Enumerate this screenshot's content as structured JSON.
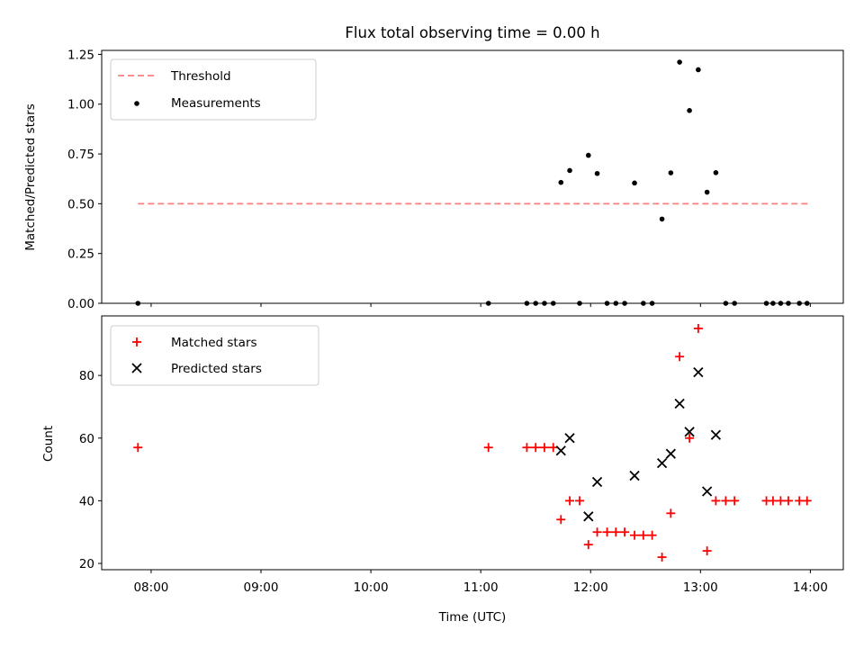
{
  "chart_data": [
    {
      "type": "scatter",
      "title": "Flux total observing time = 0.00 h",
      "xlabel": "",
      "ylabel": "Matched/Predicted stars",
      "xlim": [
        7.55,
        14.3
      ],
      "ylim": [
        0,
        1.27
      ],
      "yticks": [
        0.0,
        0.25,
        0.5,
        0.75,
        1.0,
        1.25
      ],
      "ytick_labels": [
        "0.00",
        "0.25",
        "0.50",
        "0.75",
        "1.00",
        "1.25"
      ],
      "legend_position": "top-left",
      "threshold": {
        "name": "Threshold",
        "value": 0.5,
        "x_range": [
          7.88,
          13.98
        ],
        "color": "#ff7f7f"
      },
      "series": [
        {
          "name": "Measurements",
          "color": "#000000",
          "points": [
            {
              "x": 7.88,
              "y": 0.0
            },
            {
              "x": 11.07,
              "y": 0.0
            },
            {
              "x": 11.42,
              "y": 0.0
            },
            {
              "x": 11.5,
              "y": 0.0
            },
            {
              "x": 11.58,
              "y": 0.0
            },
            {
              "x": 11.66,
              "y": 0.0
            },
            {
              "x": 11.73,
              "y": 0.607
            },
            {
              "x": 11.81,
              "y": 0.667
            },
            {
              "x": 11.9,
              "y": 0.0
            },
            {
              "x": 11.98,
              "y": 0.743
            },
            {
              "x": 12.06,
              "y": 0.652
            },
            {
              "x": 12.15,
              "y": 0.0
            },
            {
              "x": 12.23,
              "y": 0.0
            },
            {
              "x": 12.31,
              "y": 0.0
            },
            {
              "x": 12.4,
              "y": 0.604
            },
            {
              "x": 12.48,
              "y": 0.0
            },
            {
              "x": 12.56,
              "y": 0.0
            },
            {
              "x": 12.65,
              "y": 0.423
            },
            {
              "x": 12.73,
              "y": 0.655
            },
            {
              "x": 12.81,
              "y": 1.211
            },
            {
              "x": 12.9,
              "y": 0.968
            },
            {
              "x": 12.98,
              "y": 1.173
            },
            {
              "x": 13.06,
              "y": 0.558
            },
            {
              "x": 13.14,
              "y": 0.656
            },
            {
              "x": 13.23,
              "y": 0.0
            },
            {
              "x": 13.31,
              "y": 0.0
            },
            {
              "x": 13.6,
              "y": 0.0
            },
            {
              "x": 13.66,
              "y": 0.0
            },
            {
              "x": 13.73,
              "y": 0.0
            },
            {
              "x": 13.8,
              "y": 0.0
            },
            {
              "x": 13.9,
              "y": 0.0
            },
            {
              "x": 13.97,
              "y": 0.0
            }
          ]
        }
      ]
    },
    {
      "type": "scatter",
      "title": "",
      "xlabel": "Time (UTC)",
      "ylabel": "Count",
      "xlim": [
        7.55,
        14.3
      ],
      "ylim": [
        18,
        99
      ],
      "yticks": [
        20,
        40,
        60,
        80
      ],
      "ytick_labels": [
        "20",
        "40",
        "60",
        "80"
      ],
      "xticks": [
        8,
        9,
        10,
        11,
        12,
        13,
        14
      ],
      "xtick_labels": [
        "08:00",
        "09:00",
        "10:00",
        "11:00",
        "12:00",
        "13:00",
        "14:00"
      ],
      "legend_position": "top-left",
      "series": [
        {
          "name": "Matched stars",
          "color": "#ff0000",
          "points": [
            {
              "x": 7.88,
              "y": 57
            },
            {
              "x": 11.07,
              "y": 57
            },
            {
              "x": 11.42,
              "y": 57
            },
            {
              "x": 11.5,
              "y": 57
            },
            {
              "x": 11.58,
              "y": 57
            },
            {
              "x": 11.66,
              "y": 57
            },
            {
              "x": 11.73,
              "y": 34
            },
            {
              "x": 11.81,
              "y": 40
            },
            {
              "x": 11.9,
              "y": 40
            },
            {
              "x": 11.98,
              "y": 26
            },
            {
              "x": 12.06,
              "y": 30
            },
            {
              "x": 12.15,
              "y": 30
            },
            {
              "x": 12.23,
              "y": 30
            },
            {
              "x": 12.31,
              "y": 30
            },
            {
              "x": 12.4,
              "y": 29
            },
            {
              "x": 12.48,
              "y": 29
            },
            {
              "x": 12.56,
              "y": 29
            },
            {
              "x": 12.65,
              "y": 22
            },
            {
              "x": 12.73,
              "y": 36
            },
            {
              "x": 12.81,
              "y": 86
            },
            {
              "x": 12.9,
              "y": 60
            },
            {
              "x": 12.98,
              "y": 95
            },
            {
              "x": 13.06,
              "y": 24
            },
            {
              "x": 13.14,
              "y": 40
            },
            {
              "x": 13.23,
              "y": 40
            },
            {
              "x": 13.31,
              "y": 40
            },
            {
              "x": 13.6,
              "y": 40
            },
            {
              "x": 13.66,
              "y": 40
            },
            {
              "x": 13.73,
              "y": 40
            },
            {
              "x": 13.8,
              "y": 40
            },
            {
              "x": 13.9,
              "y": 40
            },
            {
              "x": 13.97,
              "y": 40
            }
          ]
        },
        {
          "name": "Predicted stars",
          "color": "#000000",
          "points": [
            {
              "x": 11.73,
              "y": 56
            },
            {
              "x": 11.81,
              "y": 60
            },
            {
              "x": 11.98,
              "y": 35
            },
            {
              "x": 12.06,
              "y": 46
            },
            {
              "x": 12.4,
              "y": 48
            },
            {
              "x": 12.65,
              "y": 52
            },
            {
              "x": 12.73,
              "y": 55
            },
            {
              "x": 12.81,
              "y": 71
            },
            {
              "x": 12.9,
              "y": 62
            },
            {
              "x": 12.98,
              "y": 81
            },
            {
              "x": 13.06,
              "y": 43
            },
            {
              "x": 13.14,
              "y": 61
            }
          ]
        }
      ]
    }
  ]
}
